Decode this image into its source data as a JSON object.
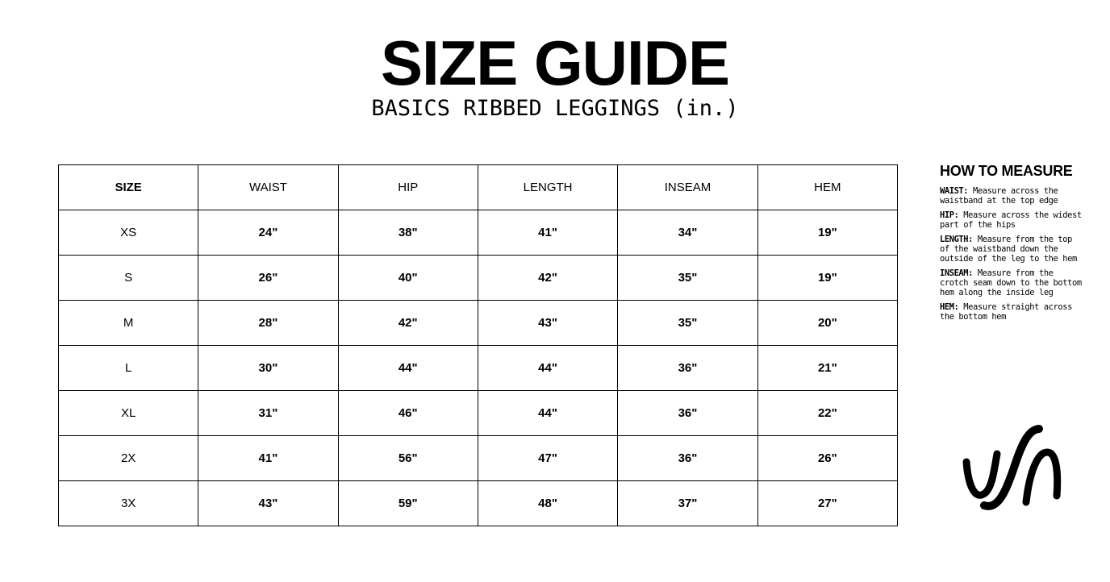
{
  "header": {
    "title": "SIZE GUIDE",
    "subtitle": "BASICS RIBBED LEGGINGS (in.)"
  },
  "table": {
    "columns": [
      "SIZE",
      "WAIST",
      "HIP",
      "LENGTH",
      "INSEAM",
      "HEM"
    ],
    "rows": [
      [
        "XS",
        "24\"",
        "38\"",
        "41\"",
        "34\"",
        "19\""
      ],
      [
        "S",
        "26\"",
        "40\"",
        "42\"",
        "35\"",
        "19\""
      ],
      [
        "M",
        "28\"",
        "42\"",
        "43\"",
        "35\"",
        "20\""
      ],
      [
        "L",
        "30\"",
        "44\"",
        "44\"",
        "36\"",
        "21\""
      ],
      [
        "XL",
        "31\"",
        "46\"",
        "44\"",
        "36\"",
        "22\""
      ],
      [
        "2X",
        "41\"",
        "56\"",
        "47\"",
        "36\"",
        "26\""
      ],
      [
        "3X",
        "43\"",
        "59\"",
        "48\"",
        "37\"",
        "27\""
      ]
    ]
  },
  "how_to_measure": {
    "title": "HOW TO MEASURE",
    "items": [
      {
        "label": "WAIST:",
        "text": "Measure across the waistband at the top edge"
      },
      {
        "label": "HIP:",
        "text": "Measure across the widest part of the hips"
      },
      {
        "label": "LENGTH:",
        "text": "Measure from the top of the waistband down the outside of the leg to the hem"
      },
      {
        "label": "INSEAM:",
        "text": "Measure from the crotch seam down to the bottom hem along the inside leg"
      },
      {
        "label": "HEM:",
        "text": "Measure straight across the bottom hem"
      }
    ]
  },
  "logo": {
    "icon": "brand-logo-icon"
  }
}
